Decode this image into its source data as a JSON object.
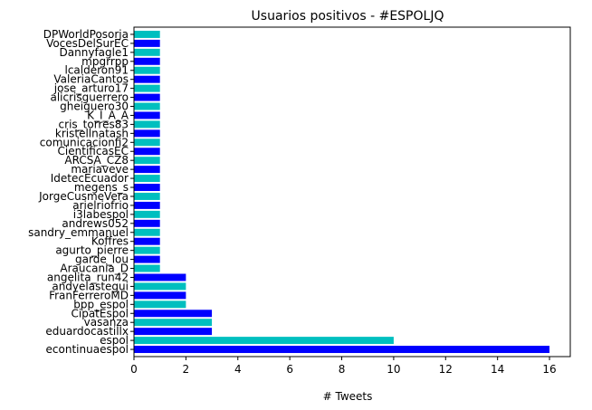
{
  "chart_data": {
    "type": "bar",
    "orientation": "horizontal",
    "title": "Usuarios positivos - #ESPOLJQ",
    "xlabel": "# Tweets",
    "ylabel": "",
    "xlim": [
      0,
      16.8
    ],
    "xticks": [
      0,
      2,
      4,
      6,
      8,
      10,
      12,
      14,
      16
    ],
    "grid": false,
    "legend": "none",
    "colors": [
      "#0000ff",
      "#00bfbf"
    ],
    "categories": [
      "econtinuaespol",
      "espol",
      "eduardocastillx",
      "vasanza",
      "CipatEspol",
      "bpp_espol",
      "FranFerreroMD",
      "andyelastegui",
      "angelita_run42",
      "Araucania_D",
      "garde_lou",
      "agurto_pierre",
      "Koffres",
      "sandry_emmanuel",
      "andrews052",
      "i3labespol",
      "arielriofrio",
      "JorgeCusmeVera",
      "megens_s",
      "IdetecEcuador",
      "mariaveve",
      "ARCSA_CZ8",
      "CientificasEC",
      "comunicacionfi2",
      "kristellnatash",
      "cris_torres83",
      "K_I_A_A",
      "gheiguero30",
      "alicrisguerrero",
      "jose_arturo17",
      "ValeriaCantos",
      "lcalderon91",
      "mpgrrpp",
      "Dannyfagle1",
      "VocesDelSurEC",
      "DPWorldPosorja"
    ],
    "values": [
      16,
      10,
      3,
      3,
      3,
      2,
      2,
      2,
      2,
      1,
      1,
      1,
      1,
      1,
      1,
      1,
      1,
      1,
      1,
      1,
      1,
      1,
      1,
      1,
      1,
      1,
      1,
      1,
      1,
      1,
      1,
      1,
      1,
      1,
      1,
      1
    ]
  }
}
